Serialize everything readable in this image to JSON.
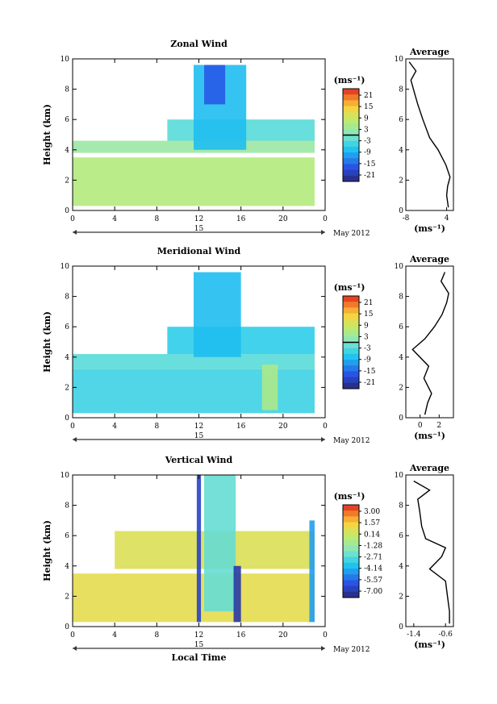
{
  "date_label": "May 2012",
  "day_label": "15",
  "chart_data": [
    {
      "id": "zonal",
      "type": "heatmap",
      "title": "Zonal Wind",
      "xlabel": "",
      "ylabel": "Height (km)",
      "xticks": [
        "0",
        "4",
        "8",
        "12",
        "16",
        "20",
        "0"
      ],
      "xlim": [
        0,
        24
      ],
      "ylim": [
        0,
        10
      ],
      "yticks": [
        "0",
        "2",
        "4",
        "6",
        "8",
        "10"
      ],
      "colorbar": {
        "unit": "(ms⁻¹)",
        "labels": [
          "21",
          "15",
          "9",
          "3",
          "-3",
          "-9",
          "-15",
          "-21"
        ],
        "range": [
          -24,
          24
        ],
        "zero_line": true
      },
      "regions": [
        {
          "x0": 0,
          "x1": 23,
          "y0": 0.3,
          "y1": 3.5,
          "v": 6
        },
        {
          "x0": 0,
          "x1": 23,
          "y0": 3.8,
          "y1": 4.6,
          "v": 3
        },
        {
          "x0": 9,
          "x1": 23,
          "y0": 4.6,
          "y1": 6.0,
          "v": -3
        },
        {
          "x0": 11.5,
          "x1": 16.5,
          "y0": 4.0,
          "y1": 9.6,
          "v": -8
        },
        {
          "x0": 12.5,
          "x1": 14.5,
          "y0": 7.0,
          "y1": 9.6,
          "v": -16
        }
      ],
      "average": {
        "xticks": [
          "-8",
          "4"
        ],
        "xlim": [
          -8,
          6
        ],
        "xlabel": "(ms⁻¹)",
        "title": "Average",
        "profile": [
          [
            4.5,
            0.2
          ],
          [
            4.0,
            1.0
          ],
          [
            4.3,
            1.6
          ],
          [
            5.0,
            2.2
          ],
          [
            3.8,
            3.0
          ],
          [
            1.5,
            4.0
          ],
          [
            -1.0,
            4.8
          ],
          [
            -3.0,
            6.0
          ],
          [
            -4.5,
            7.0
          ],
          [
            -5.5,
            7.8
          ],
          [
            -6.5,
            8.6
          ],
          [
            -5.0,
            9.2
          ],
          [
            -7.0,
            9.8
          ]
        ]
      }
    },
    {
      "id": "meridional",
      "type": "heatmap",
      "title": "Meridional Wind",
      "xlabel": "",
      "ylabel": "Height (km)",
      "xticks": [
        "0",
        "4",
        "8",
        "12",
        "16",
        "20",
        "0"
      ],
      "xlim": [
        0,
        24
      ],
      "ylim": [
        0,
        10
      ],
      "yticks": [
        "0",
        "2",
        "4",
        "6",
        "8",
        "10"
      ],
      "colorbar": {
        "unit": "(ms⁻¹)",
        "labels": [
          "21",
          "15",
          "9",
          "3",
          "-3",
          "-9",
          "-15",
          "-21"
        ],
        "range": [
          -24,
          24
        ],
        "zero_line": true
      },
      "regions": [
        {
          "x0": 0,
          "x1": 23,
          "y0": 0.3,
          "y1": 3.2,
          "v": -5
        },
        {
          "x0": 0,
          "x1": 23,
          "y0": 3.2,
          "y1": 4.2,
          "v": -3
        },
        {
          "x0": 9,
          "x1": 23,
          "y0": 4.2,
          "y1": 6.0,
          "v": -6
        },
        {
          "x0": 11.5,
          "x1": 16,
          "y0": 4.0,
          "y1": 9.6,
          "v": -8
        },
        {
          "x0": 18,
          "x1": 19.5,
          "y0": 0.5,
          "y1": 3.5,
          "v": 5
        }
      ],
      "average": {
        "xticks": [
          "0",
          "2"
        ],
        "xlim": [
          -1.5,
          3.5
        ],
        "xlabel": "(ms⁻¹)",
        "title": "Average",
        "profile": [
          [
            0.5,
            0.2
          ],
          [
            0.8,
            1.0
          ],
          [
            1.2,
            1.6
          ],
          [
            0.4,
            2.6
          ],
          [
            0.9,
            3.4
          ],
          [
            -0.8,
            4.5
          ],
          [
            0.5,
            5.2
          ],
          [
            1.5,
            6.0
          ],
          [
            2.3,
            6.8
          ],
          [
            2.8,
            7.6
          ],
          [
            3.0,
            8.2
          ],
          [
            2.2,
            9.0
          ],
          [
            2.6,
            9.6
          ]
        ]
      }
    },
    {
      "id": "vertical",
      "type": "heatmap",
      "title": "Vertical Wind",
      "xlabel": "Local Time",
      "ylabel": "Height (km)",
      "xticks": [
        "0",
        "4",
        "8",
        "12",
        "16",
        "20",
        "0"
      ],
      "xlim": [
        0,
        24
      ],
      "ylim": [
        0,
        10
      ],
      "yticks": [
        "0",
        "2",
        "4",
        "6",
        "8",
        "10"
      ],
      "colorbar": {
        "unit": "(ms⁻¹)",
        "labels": [
          "3.00",
          "1.57",
          "0.14",
          "-1.28",
          "-2.71",
          "-4.14",
          "-5.57",
          "-7.00"
        ],
        "range": [
          -7.7,
          3.7
        ],
        "zero_line": false
      },
      "regions": [
        {
          "x0": 0,
          "x1": 23,
          "y0": 0.3,
          "y1": 3.5,
          "v": 0.8
        },
        {
          "x0": 4,
          "x1": 23,
          "y0": 3.8,
          "y1": 6.3,
          "v": 0.5
        },
        {
          "x0": 12.5,
          "x1": 15.5,
          "y0": 1.0,
          "y1": 10.0,
          "v": -2.5
        },
        {
          "x0": 11.8,
          "x1": 12.2,
          "y0": 0.3,
          "y1": 10.0,
          "v": -6.5
        },
        {
          "x0": 15.3,
          "x1": 16,
          "y0": 0.3,
          "y1": 4.0,
          "v": -7.0
        },
        {
          "x0": 22.5,
          "x1": 23,
          "y0": 0.3,
          "y1": 7.0,
          "v": -4.5
        }
      ],
      "average": {
        "xticks": [
          "-1.4",
          "-0.6"
        ],
        "xlim": [
          -1.6,
          -0.4
        ],
        "xlabel": "(ms⁻¹)",
        "title": "Average",
        "profile": [
          [
            -0.5,
            0.2
          ],
          [
            -0.5,
            1.0
          ],
          [
            -0.55,
            2.0
          ],
          [
            -0.6,
            3.0
          ],
          [
            -1.0,
            3.8
          ],
          [
            -0.7,
            4.6
          ],
          [
            -0.6,
            5.2
          ],
          [
            -1.1,
            5.8
          ],
          [
            -1.2,
            6.6
          ],
          [
            -1.25,
            7.6
          ],
          [
            -1.3,
            8.4
          ],
          [
            -1.0,
            9.0
          ],
          [
            -1.4,
            9.6
          ]
        ]
      }
    }
  ]
}
